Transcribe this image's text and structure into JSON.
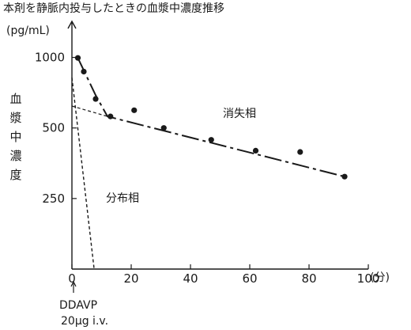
{
  "chart_data": {
    "type": "line",
    "title": "本剤を静脈内投与したときの血漿中濃度推移",
    "ylabel": "血漿中濃度",
    "yunit": "(pg/mL)",
    "xunit": "(分)",
    "x_ticks": [
      "0",
      "20",
      "40",
      "60",
      "80",
      "100"
    ],
    "y_ticks": [
      "250",
      "500",
      "1000"
    ],
    "xlim": [
      0,
      100
    ],
    "ylim": [
      125,
      1414
    ],
    "y_scale": "log",
    "observed": {
      "x": [
        2,
        4,
        8,
        13,
        21,
        31,
        47,
        62,
        77,
        92
      ],
      "y": [
        995,
        870,
        665,
        560,
        595,
        500,
        445,
        400,
        395,
        310
      ]
    },
    "fitted_total": {
      "x": [
        2,
        8,
        12,
        92
      ],
      "y": [
        995,
        690,
        560,
        310
      ]
    },
    "elimination_phase": {
      "label": "消失相",
      "x": [
        0,
        12
      ],
      "y": [
        620,
        560
      ]
    },
    "distribution_phase": {
      "label": "分布相",
      "x": [
        0,
        7.5
      ],
      "y": [
        820,
        125
      ]
    },
    "dose_annotation": {
      "line1": "DDAVP",
      "line2": "20μg i.v."
    }
  }
}
